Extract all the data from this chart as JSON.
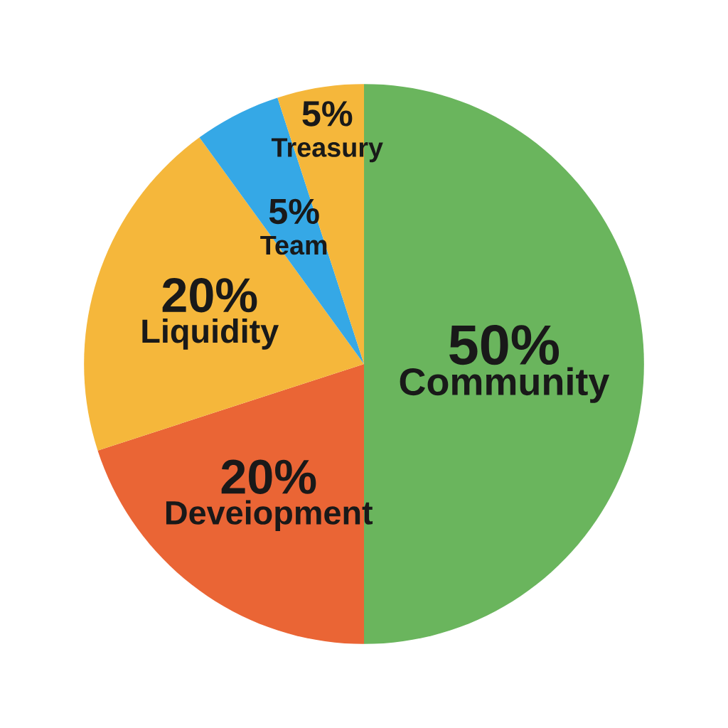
{
  "chart_data": {
    "type": "pie",
    "categories": [
      "Community",
      "Deveiopment",
      "Liquidity",
      "Team",
      "Treasury"
    ],
    "values": [
      50,
      20,
      20,
      5,
      5
    ],
    "value_labels": [
      "50%",
      "20%",
      "20%",
      "5%",
      "5%"
    ],
    "colors": [
      "#6ab55d",
      "#ea6535",
      "#f5b73b",
      "#35a8e6",
      "#f5b73b"
    ]
  }
}
